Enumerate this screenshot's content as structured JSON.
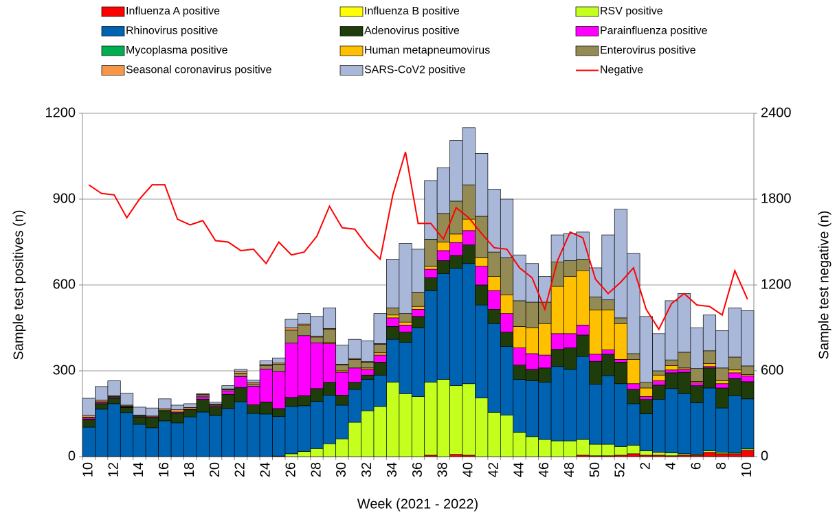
{
  "chart_data": {
    "type": "bar",
    "stacked": true,
    "x_label": "Week (2021 - 2022)",
    "y_label": "Sample test positives (n)",
    "y2_label": "Sample test negative (n)",
    "categories": [
      "10",
      null,
      "12",
      null,
      "14",
      null,
      "16",
      null,
      "18",
      null,
      "20",
      null,
      "22",
      null,
      "24",
      null,
      "26",
      null,
      "28",
      null,
      "30",
      null,
      "32",
      null,
      "34",
      null,
      "36",
      null,
      "38",
      null,
      "40",
      null,
      "42",
      null,
      "44",
      null,
      "46",
      null,
      "48",
      null,
      "50",
      null,
      "52",
      null,
      "2",
      null,
      "4",
      null,
      "6",
      null,
      "8",
      null,
      "10"
    ],
    "ylim": [
      0,
      1200
    ],
    "yticks": [
      0,
      300,
      600,
      900,
      1200
    ],
    "y2lim": [
      0,
      2400
    ],
    "y2ticks": [
      0,
      600,
      1200,
      1800,
      2400
    ],
    "grid": true,
    "series": [
      {
        "name": "Influenza A positive",
        "color": "#ff0000",
        "values": [
          0,
          0,
          0,
          0,
          0,
          0,
          0,
          0,
          0,
          0,
          0,
          0,
          0,
          0,
          0,
          2,
          0,
          0,
          0,
          0,
          0,
          0,
          0,
          0,
          0,
          0,
          0,
          5,
          0,
          8,
          5,
          0,
          0,
          0,
          0,
          0,
          0,
          0,
          0,
          5,
          3,
          3,
          5,
          10,
          5,
          5,
          3,
          5,
          5,
          15,
          10,
          10,
          22
        ]
      },
      {
        "name": "Influenza B positive",
        "color": "#ffff00",
        "values": [
          0,
          0,
          0,
          0,
          0,
          0,
          0,
          0,
          0,
          0,
          0,
          0,
          0,
          0,
          0,
          0,
          0,
          0,
          0,
          0,
          0,
          0,
          0,
          0,
          0,
          0,
          0,
          0,
          0,
          0,
          0,
          0,
          0,
          0,
          0,
          0,
          0,
          0,
          0,
          0,
          0,
          0,
          0,
          0,
          0,
          0,
          0,
          0,
          0,
          0,
          0,
          0,
          0
        ]
      },
      {
        "name": "RSV positive",
        "color": "#c4ff1e",
        "values": [
          0,
          0,
          0,
          0,
          0,
          0,
          0,
          0,
          0,
          0,
          0,
          0,
          0,
          0,
          0,
          0,
          10,
          18,
          28,
          45,
          62,
          120,
          160,
          175,
          260,
          220,
          210,
          255,
          270,
          240,
          250,
          205,
          155,
          145,
          85,
          70,
          60,
          55,
          55,
          55,
          40,
          40,
          30,
          30,
          15,
          10,
          10,
          5,
          3,
          5,
          5,
          3,
          5
        ]
      },
      {
        "name": "Rhinovirus positive",
        "color": "#0063b1",
        "values": [
          103,
          166,
          185,
          154,
          113,
          101,
          125,
          118,
          139,
          156,
          144,
          168,
          192,
          151,
          149,
          138,
          165,
          160,
          165,
          170,
          118,
          115,
          110,
          110,
          150,
          180,
          240,
          320,
          370,
          410,
          420,
          325,
          310,
          240,
          185,
          195,
          200,
          260,
          250,
          290,
          210,
          240,
          220,
          145,
          130,
          185,
          225,
          210,
          180,
          220,
          155,
          200,
          175
        ]
      },
      {
        "name": "Adenovirus positive",
        "color": "#1e3d0b",
        "values": [
          28,
          19,
          19,
          18,
          25,
          35,
          35,
          35,
          25,
          45,
          30,
          50,
          50,
          30,
          42,
          28,
          32,
          35,
          45,
          45,
          35,
          25,
          15,
          45,
          45,
          35,
          40,
          45,
          45,
          45,
          65,
          70,
          50,
          50,
          50,
          40,
          50,
          60,
          75,
          75,
          80,
          75,
          75,
          50,
          50,
          50,
          55,
          75,
          60,
          70,
          70,
          60,
          60
        ]
      },
      {
        "name": "Parainfluenza positive",
        "color": "#ff00ff",
        "values": [
          4,
          3,
          3,
          2,
          2,
          3,
          0,
          3,
          2,
          8,
          4,
          12,
          38,
          65,
          115,
          130,
          190,
          210,
          160,
          135,
          80,
          50,
          20,
          25,
          30,
          25,
          25,
          30,
          35,
          45,
          50,
          65,
          65,
          65,
          60,
          55,
          45,
          55,
          50,
          35,
          25,
          15,
          10,
          20,
          10,
          15,
          10,
          10,
          10,
          5,
          15,
          20,
          20
        ]
      },
      {
        "name": "Mycoplasma positive",
        "color": "#00b050",
        "values": [
          0,
          0,
          0,
          0,
          0,
          0,
          0,
          0,
          0,
          0,
          0,
          0,
          0,
          0,
          0,
          0,
          0,
          0,
          0,
          0,
          0,
          0,
          0,
          0,
          0,
          0,
          0,
          0,
          0,
          0,
          0,
          0,
          0,
          0,
          0,
          0,
          0,
          0,
          0,
          0,
          0,
          0,
          0,
          0,
          0,
          0,
          0,
          0,
          0,
          0,
          0,
          0,
          0
        ]
      },
      {
        "name": "Human metapneumovirus",
        "color": "#ffc000",
        "values": [
          0,
          0,
          0,
          0,
          0,
          0,
          0,
          0,
          0,
          0,
          0,
          0,
          0,
          0,
          0,
          0,
          0,
          0,
          0,
          5,
          5,
          0,
          5,
          8,
          10,
          10,
          10,
          10,
          30,
          30,
          40,
          30,
          50,
          65,
          75,
          90,
          110,
          165,
          200,
          190,
          155,
          140,
          125,
          85,
          30,
          20,
          15,
          5,
          5,
          10,
          10,
          10,
          5
        ]
      },
      {
        "name": "Enterovirus positive",
        "color": "#948a54",
        "values": [
          3,
          4,
          3,
          3,
          3,
          0,
          3,
          0,
          0,
          4,
          3,
          4,
          12,
          8,
          12,
          25,
          45,
          35,
          20,
          45,
          20,
          30,
          20,
          30,
          25,
          30,
          50,
          95,
          100,
          115,
          120,
          145,
          85,
          130,
          90,
          90,
          75,
          85,
          55,
          40,
          45,
          35,
          20,
          20,
          20,
          15,
          20,
          55,
          45,
          45,
          45,
          45,
          30
        ]
      },
      {
        "name": "Seasonal coronavirus positive",
        "color": "#f79646",
        "values": [
          6,
          5,
          3,
          3,
          2,
          3,
          4,
          8,
          6,
          4,
          3,
          3,
          6,
          4,
          4,
          4,
          8,
          5,
          3,
          3,
          3,
          3,
          2,
          2,
          0,
          0,
          0,
          0,
          0,
          0,
          0,
          0,
          0,
          0,
          0,
          0,
          0,
          0,
          0,
          0,
          0,
          0,
          0,
          0,
          0,
          0,
          0,
          0,
          0,
          0,
          0,
          0,
          0
        ]
      },
      {
        "name": "SARS-CoV2 positive",
        "color": "#a9b8d9",
        "values": [
          60,
          48,
          52,
          42,
          28,
          28,
          35,
          16,
          13,
          3,
          6,
          11,
          7,
          10,
          13,
          18,
          30,
          37,
          69,
          72,
          67,
          67,
          73,
          105,
          170,
          245,
          150,
          205,
          160,
          212,
          200,
          220,
          220,
          205,
          160,
          135,
          90,
          95,
          95,
          95,
          102,
          227,
          380,
          350,
          230,
          130,
          207,
          205,
          142,
          125,
          130,
          172,
          193
        ]
      },
      {
        "name": "Negative",
        "type": "line",
        "axis": "y2",
        "color": "#ff0000",
        "values": [
          1900,
          1840,
          1830,
          1670,
          1800,
          1900,
          1900,
          1660,
          1620,
          1650,
          1510,
          1500,
          1440,
          1450,
          1350,
          1500,
          1410,
          1430,
          1540,
          1750,
          1600,
          1590,
          1470,
          1380,
          1830,
          2130,
          1630,
          1630,
          1520,
          1740,
          1670,
          1560,
          1460,
          1450,
          1320,
          1250,
          1030,
          1370,
          1570,
          1530,
          1240,
          1140,
          1220,
          1320,
          1030,
          890,
          1070,
          1140,
          1060,
          1050,
          990,
          1300,
          1100
        ]
      }
    ]
  }
}
